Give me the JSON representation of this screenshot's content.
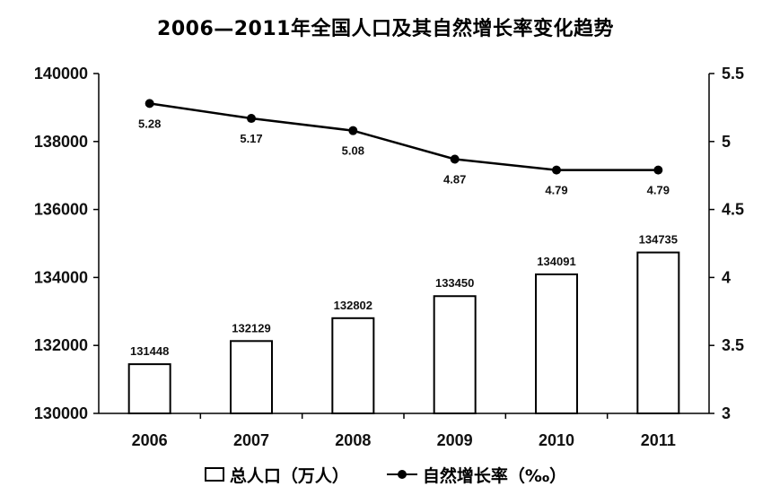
{
  "chart_data": {
    "type": "bar+line",
    "title": "2006—2011年全国人口及其自然增长率变化趋势",
    "categories": [
      "2006",
      "2007",
      "2008",
      "2009",
      "2010",
      "2011"
    ],
    "series": [
      {
        "name": "总人口（万人）",
        "type": "bar",
        "axis": "left",
        "values": [
          131448,
          132129,
          132802,
          133450,
          134091,
          134735
        ]
      },
      {
        "name": "自然增长率（‰）",
        "type": "line",
        "axis": "right",
        "values": [
          5.28,
          5.17,
          5.08,
          4.87,
          4.79,
          4.79
        ]
      }
    ],
    "y_left": {
      "range": [
        130000,
        140000
      ],
      "ticks": [
        "130000",
        "132000",
        "134000",
        "136000",
        "138000",
        "140000"
      ]
    },
    "y_right": {
      "range": [
        3,
        5.5
      ],
      "ticks": [
        "3",
        "3.5",
        "4",
        "4.5",
        "5",
        "5.5"
      ]
    },
    "grid": false,
    "legend_position": "bottom"
  }
}
